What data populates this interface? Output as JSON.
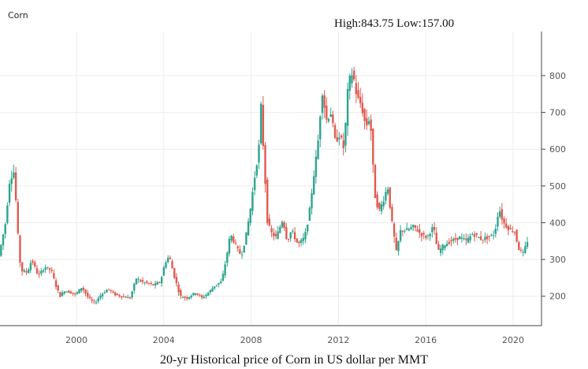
{
  "corner_title": "Corn",
  "high_low_label": "High:843.75 Low:157.00",
  "caption": "20-yr Historical price of Corn in US dollar per MMT",
  "chart_data": {
    "type": "candlestick",
    "x_axis": {
      "ticks": [
        2000,
        2004,
        2008,
        2012,
        2016,
        2020
      ],
      "range": [
        1996.5,
        2021.3
      ]
    },
    "y_axis": {
      "ticks": [
        200,
        300,
        400,
        500,
        600,
        700,
        800
      ],
      "range": [
        120,
        920
      ],
      "position": "right"
    },
    "grid": true,
    "colors": {
      "up": "#2ca58d",
      "down": "#e05a4f",
      "grid": "#ececec",
      "axis": "#444444"
    },
    "price_series": [
      [
        1996.5,
        310
      ],
      [
        1996.8,
        400
      ],
      [
        1997.0,
        520
      ],
      [
        1997.2,
        540
      ],
      [
        1997.35,
        380
      ],
      [
        1997.5,
        270
      ],
      [
        1997.8,
        265
      ],
      [
        1998.0,
        300
      ],
      [
        1998.3,
        255
      ],
      [
        1998.6,
        280
      ],
      [
        1998.9,
        270
      ],
      [
        1999.1,
        230
      ],
      [
        1999.3,
        200
      ],
      [
        1999.5,
        215
      ],
      [
        1999.8,
        210
      ],
      [
        2000.0,
        205
      ],
      [
        2000.3,
        225
      ],
      [
        2000.6,
        195
      ],
      [
        2000.9,
        180
      ],
      [
        2001.1,
        200
      ],
      [
        2001.5,
        220
      ],
      [
        2001.8,
        205
      ],
      [
        2002.1,
        200
      ],
      [
        2002.5,
        195
      ],
      [
        2002.8,
        250
      ],
      [
        2003.0,
        240
      ],
      [
        2003.3,
        235
      ],
      [
        2003.6,
        230
      ],
      [
        2003.9,
        240
      ],
      [
        2004.1,
        290
      ],
      [
        2004.3,
        310
      ],
      [
        2004.5,
        260
      ],
      [
        2004.8,
        200
      ],
      [
        2005.1,
        195
      ],
      [
        2005.5,
        210
      ],
      [
        2005.8,
        195
      ],
      [
        2006.1,
        210
      ],
      [
        2006.4,
        230
      ],
      [
        2006.7,
        240
      ],
      [
        2006.9,
        300
      ],
      [
        2007.1,
        370
      ],
      [
        2007.4,
        330
      ],
      [
        2007.6,
        310
      ],
      [
        2007.8,
        360
      ],
      [
        2008.0,
        430
      ],
      [
        2008.2,
        520
      ],
      [
        2008.4,
        600
      ],
      [
        2008.5,
        720
      ],
      [
        2008.65,
        560
      ],
      [
        2008.8,
        400
      ],
      [
        2009.0,
        370
      ],
      [
        2009.2,
        360
      ],
      [
        2009.5,
        410
      ],
      [
        2009.7,
        350
      ],
      [
        2009.9,
        380
      ],
      [
        2010.2,
        340
      ],
      [
        2010.5,
        360
      ],
      [
        2010.7,
        420
      ],
      [
        2010.9,
        520
      ],
      [
        2011.1,
        610
      ],
      [
        2011.3,
        760
      ],
      [
        2011.5,
        680
      ],
      [
        2011.7,
        700
      ],
      [
        2011.9,
        620
      ],
      [
        2012.1,
        640
      ],
      [
        2012.3,
        600
      ],
      [
        2012.5,
        780
      ],
      [
        2012.7,
        810
      ],
      [
        2012.9,
        740
      ],
      [
        2013.1,
        720
      ],
      [
        2013.3,
        660
      ],
      [
        2013.5,
        690
      ],
      [
        2013.7,
        480
      ],
      [
        2013.9,
        430
      ],
      [
        2014.1,
        460
      ],
      [
        2014.3,
        500
      ],
      [
        2014.5,
        400
      ],
      [
        2014.7,
        320
      ],
      [
        2014.9,
        380
      ],
      [
        2015.2,
        380
      ],
      [
        2015.5,
        390
      ],
      [
        2015.8,
        370
      ],
      [
        2016.1,
        360
      ],
      [
        2016.4,
        390
      ],
      [
        2016.6,
        320
      ],
      [
        2016.9,
        340
      ],
      [
        2017.2,
        350
      ],
      [
        2017.6,
        360
      ],
      [
        2017.9,
        350
      ],
      [
        2018.2,
        370
      ],
      [
        2018.6,
        355
      ],
      [
        2018.9,
        360
      ],
      [
        2019.2,
        370
      ],
      [
        2019.4,
        440
      ],
      [
        2019.6,
        400
      ],
      [
        2019.9,
        380
      ],
      [
        2020.1,
        380
      ],
      [
        2020.3,
        330
      ],
      [
        2020.5,
        315
      ],
      [
        2020.7,
        350
      ]
    ]
  }
}
